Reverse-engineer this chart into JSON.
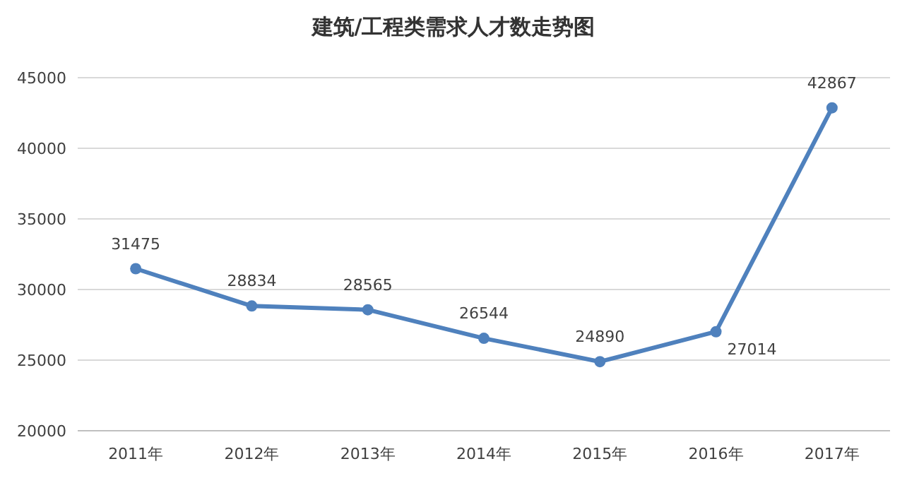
{
  "chart_data": {
    "type": "line",
    "title": "建筑/工程类需求人才数走势图",
    "categories": [
      "2011年",
      "2012年",
      "2013年",
      "2014年",
      "2015年",
      "2016年",
      "2017年"
    ],
    "values": [
      31475,
      28834,
      28565,
      26544,
      24890,
      27014,
      42867
    ],
    "color": "#4f81bd",
    "ylim": [
      20000,
      45000
    ],
    "yticks": [
      20000,
      25000,
      30000,
      35000,
      40000,
      45000
    ],
    "grid": "y",
    "marker": "circle",
    "data_labels": true
  }
}
